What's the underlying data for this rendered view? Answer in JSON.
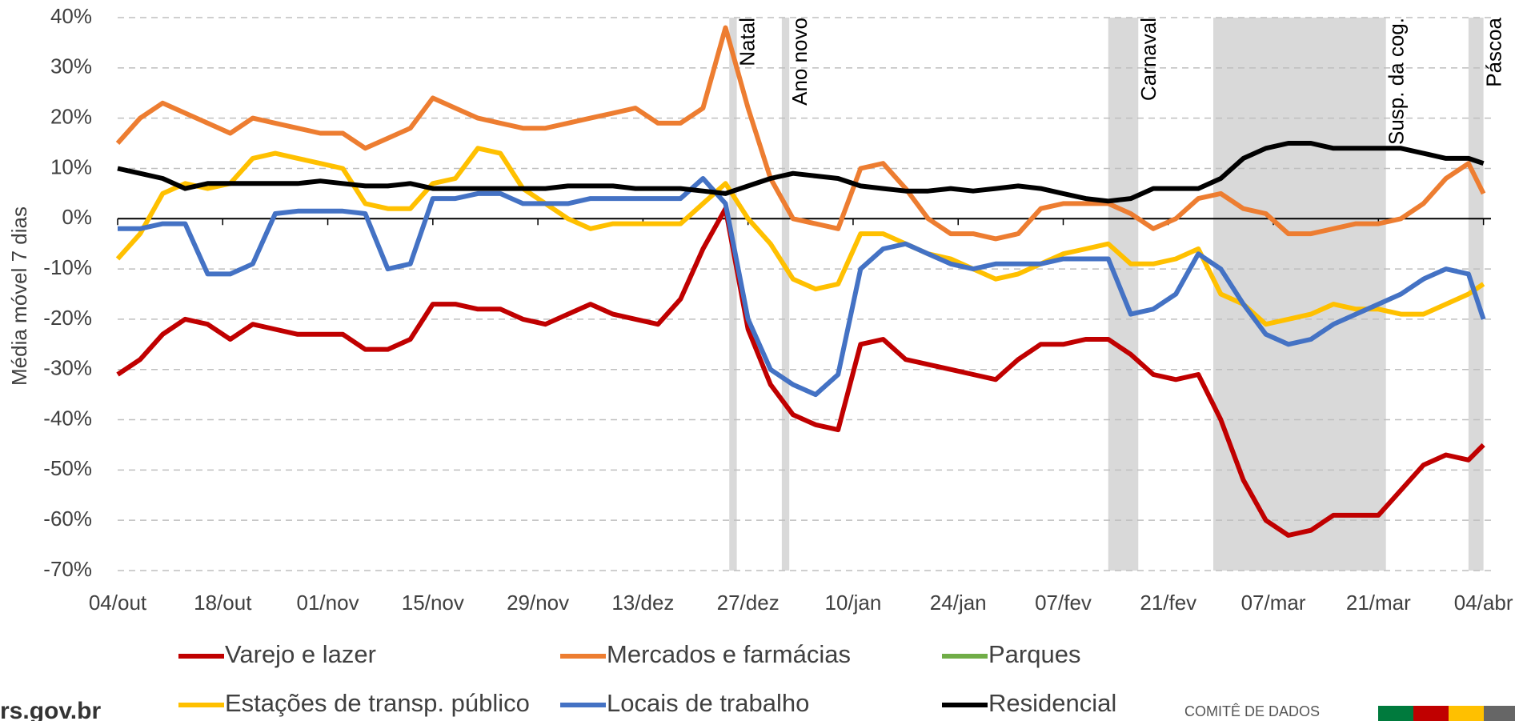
{
  "chart_data": {
    "type": "line",
    "y_label": "Média móvel 7 dias",
    "x": [
      0,
      3,
      6,
      9,
      12,
      15,
      18,
      21,
      24,
      27,
      30,
      33,
      36,
      39,
      42,
      45,
      48,
      51,
      54,
      57,
      60,
      63,
      66,
      69,
      72,
      75,
      78,
      81,
      84,
      87,
      90,
      93,
      96,
      99,
      102,
      105,
      108,
      111,
      114,
      117,
      120,
      123,
      126,
      129,
      132,
      135,
      138,
      141,
      144,
      147,
      150,
      153,
      156,
      159,
      162,
      165,
      168,
      171,
      174,
      177,
      180,
      182
    ],
    "xlim": [
      0,
      183
    ],
    "xticks": [
      {
        "value": 0,
        "label": "04/out"
      },
      {
        "value": 14,
        "label": "18/out"
      },
      {
        "value": 28,
        "label": "01/nov"
      },
      {
        "value": 42,
        "label": "15/nov"
      },
      {
        "value": 56,
        "label": "29/nov"
      },
      {
        "value": 70,
        "label": "13/dez"
      },
      {
        "value": 84,
        "label": "27/dez"
      },
      {
        "value": 98,
        "label": "10/jan"
      },
      {
        "value": 112,
        "label": "24/jan"
      },
      {
        "value": 126,
        "label": "07/fev"
      },
      {
        "value": 140,
        "label": "21/fev"
      },
      {
        "value": 154,
        "label": "07/mar"
      },
      {
        "value": 168,
        "label": "21/mar"
      },
      {
        "value": 182,
        "label": "04/abr"
      }
    ],
    "ylim": [
      -70,
      40
    ],
    "yticks": [
      {
        "value": 40,
        "label": "40%"
      },
      {
        "value": 30,
        "label": "30%"
      },
      {
        "value": 20,
        "label": "20%"
      },
      {
        "value": 10,
        "label": "10%"
      },
      {
        "value": 0,
        "label": "0%"
      },
      {
        "value": -10,
        "label": "-10%"
      },
      {
        "value": -20,
        "label": "-20%"
      },
      {
        "value": -30,
        "label": "-30%"
      },
      {
        "value": -40,
        "label": "-40%"
      },
      {
        "value": -50,
        "label": "-50%"
      },
      {
        "value": -60,
        "label": "-60%"
      },
      {
        "value": -70,
        "label": "-70%"
      }
    ],
    "grid": true,
    "legend": "bottom",
    "annotations": [
      {
        "label": "Natal",
        "start": 81.5,
        "end": 82.5
      },
      {
        "label": "Ano novo",
        "start": 88.5,
        "end": 89.5
      },
      {
        "label": "Carnaval",
        "start": 132,
        "end": 136
      },
      {
        "label": "Susp. da cog.",
        "start": 146,
        "end": 169
      },
      {
        "label": "Páscoa",
        "start": 180,
        "end": 182
      }
    ],
    "series": [
      {
        "name": "Varejo e lazer",
        "color": "#c00000",
        "values": [
          -31,
          -28,
          -23,
          -20,
          -21,
          -24,
          -21,
          -22,
          -23,
          -23,
          -23,
          -26,
          -26,
          -24,
          -17,
          -17,
          -18,
          -18,
          -20,
          -21,
          -19,
          -17,
          -19,
          -20,
          -21,
          -16,
          -6,
          2,
          -22,
          -33,
          -39,
          -41,
          -42,
          -25,
          -24,
          -28,
          -29,
          -30,
          -31,
          -32,
          -28,
          -25,
          -25,
          -24,
          -24,
          -27,
          -31,
          -32,
          -31,
          -40,
          -52,
          -60,
          -63,
          -62,
          -59,
          -59,
          -59,
          -54,
          -49,
          -47,
          -48,
          -45
        ]
      },
      {
        "name": "Mercados e farmácias",
        "color": "#ed7d31",
        "values": [
          15,
          20,
          23,
          21,
          19,
          17,
          20,
          19,
          18,
          17,
          17,
          14,
          16,
          18,
          24,
          22,
          20,
          19,
          18,
          18,
          19,
          20,
          21,
          22,
          19,
          19,
          22,
          38,
          22,
          8,
          0,
          -1,
          -2,
          10,
          11,
          6,
          0,
          -3,
          -3,
          -4,
          -3,
          2,
          3,
          3,
          3,
          1,
          -2,
          0,
          4,
          5,
          2,
          1,
          -3,
          -3,
          -2,
          -1,
          -1,
          0,
          3,
          8,
          11,
          5
        ]
      },
      {
        "name": "Parques",
        "color": "#70ad47",
        "values": [
          null,
          null,
          null,
          null,
          null,
          null,
          null,
          null,
          null,
          null,
          null,
          null,
          null,
          null,
          null,
          null,
          null,
          null,
          null,
          null,
          null,
          null,
          null,
          null,
          null,
          null,
          null,
          null,
          null,
          null,
          null,
          null,
          null,
          null,
          null,
          null,
          null,
          null,
          null,
          null,
          null,
          null,
          null,
          null,
          null,
          null,
          null,
          null,
          null,
          null,
          null,
          null,
          null,
          null,
          null,
          null,
          null,
          null,
          null,
          null,
          null,
          null
        ]
      },
      {
        "name": "Estações de transp. público",
        "color": "#ffc000",
        "values": [
          -8,
          -3,
          5,
          7,
          6,
          7,
          12,
          13,
          12,
          11,
          10,
          3,
          2,
          2,
          7,
          8,
          14,
          13,
          6,
          3,
          0,
          -2,
          -1,
          -1,
          -1,
          -1,
          3,
          7,
          0,
          -5,
          -12,
          -14,
          -13,
          -3,
          -3,
          -5,
          -7,
          -8,
          -10,
          -12,
          -11,
          -9,
          -7,
          -6,
          -5,
          -9,
          -9,
          -8,
          -6,
          -15,
          -17,
          -21,
          -20,
          -19,
          -17,
          -18,
          -18,
          -19,
          -19,
          -17,
          -15,
          -13
        ]
      },
      {
        "name": "Locais de trabalho",
        "color": "#4472c4",
        "values": [
          -2,
          -2,
          -1,
          -1,
          -11,
          -11,
          -9,
          1,
          1.5,
          1.5,
          1.5,
          1,
          -10,
          -9,
          4,
          4,
          5,
          5,
          3,
          3,
          3,
          4,
          4,
          4,
          4,
          4,
          8,
          3,
          -20,
          -30,
          -33,
          -35,
          -31,
          -10,
          -6,
          -5,
          -7,
          -9,
          -10,
          -9,
          -9,
          -9,
          -8,
          -8,
          -8,
          -19,
          -18,
          -15,
          -7,
          -10,
          -17,
          -23,
          -25,
          -24,
          -21,
          -19,
          -17,
          -15,
          -12,
          -10,
          -11,
          -20
        ]
      },
      {
        "name": "Residencial",
        "color": "#000000",
        "values": [
          10,
          9,
          8,
          6,
          7,
          7,
          7,
          7,
          7,
          7.5,
          7,
          6.5,
          6.5,
          7,
          6,
          6,
          6,
          6,
          6,
          6,
          6.5,
          6.5,
          6.5,
          6,
          6,
          6,
          5.5,
          5,
          6.5,
          8,
          9,
          8.5,
          8,
          6.5,
          6,
          5.5,
          5.5,
          6,
          5.5,
          6,
          6.5,
          6,
          5,
          4,
          3.5,
          4,
          6,
          6,
          6,
          8,
          12,
          14,
          15,
          15,
          14,
          14,
          14,
          14,
          13,
          12,
          12,
          11
        ]
      }
    ]
  },
  "footer": {
    "site": "rs.gov.br",
    "org": "COMITÊ DE DADOS"
  }
}
